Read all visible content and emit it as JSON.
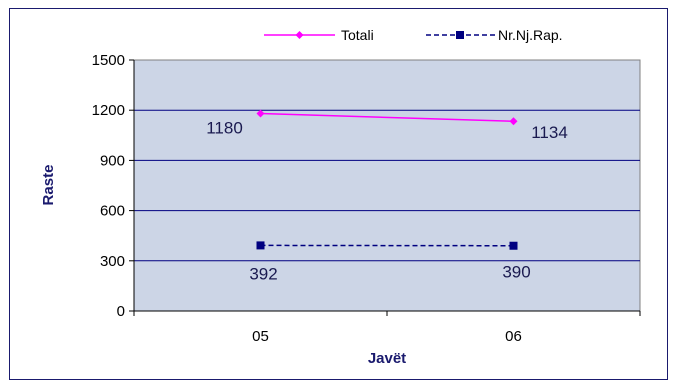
{
  "chart_data": {
    "type": "line",
    "title": "",
    "xlabel": "Javët",
    "ylabel": "Raste",
    "categories": [
      "05",
      "06"
    ],
    "ylim": [
      0,
      1500
    ],
    "yticks": [
      0,
      300,
      600,
      900,
      1200,
      1500
    ],
    "grid": true,
    "legend_position": "top",
    "series": [
      {
        "name": "Totali",
        "values": [
          1180,
          1134
        ],
        "color": "#ff00ff",
        "line_style": "solid",
        "marker": "diamond",
        "labels": [
          "1180",
          "1134"
        ]
      },
      {
        "name": "Nr.Nj.Rap.",
        "values": [
          392,
          390
        ],
        "color": "#000080",
        "line_style": "dashed",
        "marker": "square",
        "labels": [
          "392",
          "390"
        ]
      }
    ],
    "plot_background": "#ccd5e6"
  }
}
